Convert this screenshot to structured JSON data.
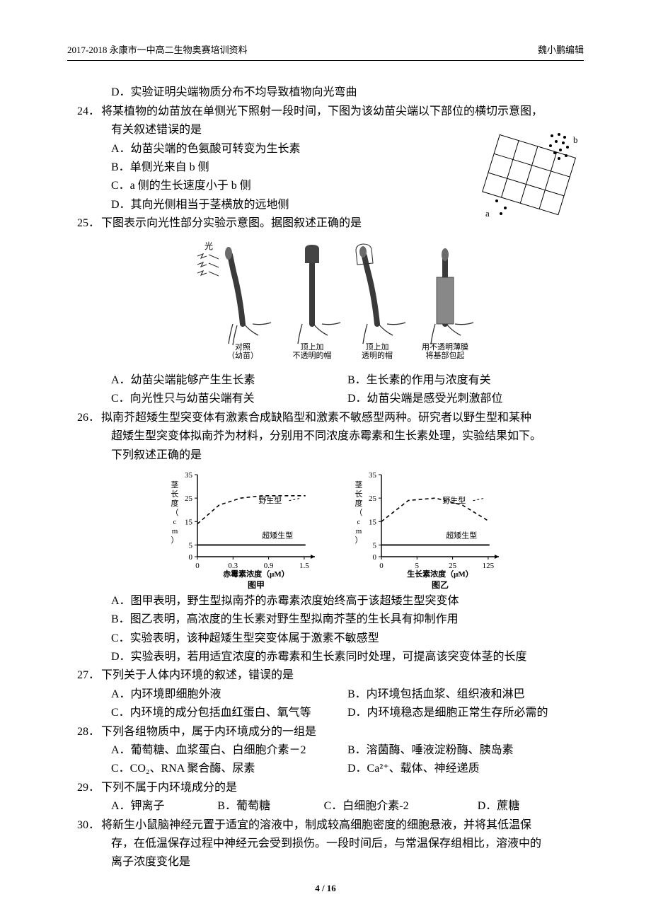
{
  "header": {
    "left": "2017-2018 永康市一中高二生物奥赛培训资料",
    "right": "魏小鹏编辑"
  },
  "pre_q24": {
    "opt_d": "D．实验证明尖端物质分布不均导致植物向光弯曲"
  },
  "q24": {
    "num": "24．",
    "stem_l1": "将某植物的幼苗放在单侧光下照射一段时间，下图为该幼苗尖端以下部位的横切示意图，",
    "stem_l2": "有关叙述错误的是",
    "a": "A．幼苗尖端的色氨酸可转变为生长素",
    "b": "B．单侧光来自 b 侧",
    "c": "C．a 侧的生长速度小于 b 侧",
    "d": "D．其向光侧相当于茎横放的远地侧"
  },
  "q25": {
    "num": "25．",
    "stem": "下图表示向光性部分实验示意图。据图叙述正确的是",
    "fig_light": "光",
    "fig_captions": [
      "对照\n（幼苗）",
      "顶上加\n不透明的帽",
      "顶上加\n透明的帽",
      "用不透明薄膜\n将基部包起"
    ],
    "a": "A．幼苗尖端能够产生生长素",
    "b": "B．生长素的作用与浓度有关",
    "c": "C．向光性只与幼苗尖端有关",
    "d": "D．幼苗尖端是感受光刺激部位"
  },
  "q26": {
    "num": "26．",
    "stem_l1": "拟南芥超矮生型突变体有激素合成缺陷型和激素不敏感型两种。研究者以野生型和某种",
    "stem_l2": "超矮生型突变体拟南芥为材料，分别用不同浓度赤霉素和生长素处理，实验结果如下。",
    "stem_l3": "下列叙述正确的是",
    "a": "A．图甲表明，野生型拟南芥的赤霉素浓度始终高于该超矮生型突变体",
    "b": "B．图乙表明，高浓度的生长素对野生型拟南芥茎的生长具有抑制作用",
    "c": "C．实验表明，该种超矮生型突变体属于激素不敏感型",
    "d": "D．实验表明，若用适宜浓度的赤霉素和生长素同时处理，可提高该突变体茎的长度",
    "chart": {
      "type": "line",
      "y_label": "茎长度（cm）",
      "y_ticks": [
        0,
        5,
        15,
        25,
        35
      ],
      "ylim": [
        0,
        35
      ],
      "series1_label": "野生型",
      "series2_label": "超矮生型",
      "wild_style": "dashed",
      "dwarf_style": "solid",
      "line_color": "#000000",
      "background_color": "#ffffff",
      "label_fontsize": 11,
      "left": {
        "x_label": "赤霉素浓度（μM）",
        "caption": "图甲",
        "x_ticks": [
          0,
          0.3,
          0.9,
          1.5
        ],
        "wild_points": [
          [
            0,
            14
          ],
          [
            0.3,
            22
          ],
          [
            0.6,
            25
          ],
          [
            0.9,
            26
          ],
          [
            1.2,
            26
          ],
          [
            1.5,
            26
          ]
        ],
        "dwarf_points": [
          [
            0,
            5
          ],
          [
            0.3,
            5
          ],
          [
            0.6,
            5
          ],
          [
            0.9,
            5
          ],
          [
            1.2,
            5
          ],
          [
            1.5,
            5
          ]
        ]
      },
      "right": {
        "x_label": "生长素浓度（μM）",
        "caption": "图乙",
        "x_ticks": [
          0,
          5,
          25,
          125
        ],
        "wild_points": [
          [
            0,
            15
          ],
          [
            1,
            24
          ],
          [
            2,
            25
          ],
          [
            3,
            22
          ],
          [
            4,
            15
          ]
        ],
        "dwarf_points": [
          [
            0,
            5
          ],
          [
            1,
            5
          ],
          [
            2,
            5
          ],
          [
            3,
            5
          ],
          [
            4,
            5
          ]
        ]
      }
    }
  },
  "q27": {
    "num": "27．",
    "stem": "下列关于人体内环境的叙述，错误的是",
    "a": "A．内环境即细胞外液",
    "b": "B．内环境包括血浆、组织液和淋巴",
    "c": "C．内环境的成分包括血红蛋白、氧气等",
    "d": "D．内环境稳态是细胞正常生存所必需的"
  },
  "q28": {
    "num": "28．",
    "stem": "下列各组物质中，属于内环境成分的一组是",
    "a": "A．葡萄糖、血浆蛋白、白细胞介素－2",
    "b": "B．溶菌酶、唾液淀粉酶、胰岛素",
    "c": "C．CO₂、RNA 聚合酶、尿素",
    "d": "D．Ca²⁺、载体、神经递质"
  },
  "q29": {
    "num": "29．",
    "stem": "下列不属于内环境成分的是",
    "a": "A．钾离子",
    "b": "B．葡萄糖",
    "c": "C．白细胞介素-2",
    "d": "D．蔗糖"
  },
  "q30": {
    "num": "30．",
    "stem_l1": "将新生小鼠脑神经元置于适宜的溶液中，制成较高细胞密度的细胞悬液，并将其低温保",
    "stem_l2": "存，在低温保存过程中神经元会受到损伤。一段时间后，与常温保存组相比，溶液中的",
    "stem_l3": "离子浓度变化是"
  },
  "page": "4 / 16"
}
